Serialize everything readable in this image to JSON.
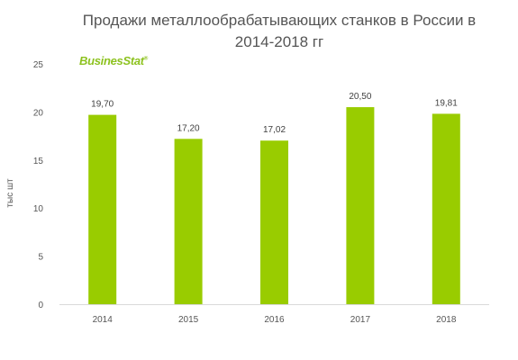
{
  "chart_data": {
    "type": "bar",
    "title_lines": [
      "Продажи металлообрабатывающих станков в России в",
      "2014-2018 гг"
    ],
    "logo_text": "BusinesStat",
    "logo_mark": "®",
    "xlabel": "",
    "ylabel": "тыс шт",
    "categories": [
      "2014",
      "2015",
      "2016",
      "2017",
      "2018"
    ],
    "values": [
      19.7,
      17.2,
      17.02,
      20.5,
      19.81
    ],
    "value_labels": [
      "19,70",
      "17,20",
      "17,02",
      "20,50",
      "19,81"
    ],
    "ylim": [
      0,
      25
    ],
    "yticks": [
      0,
      5,
      10,
      15,
      20,
      25
    ],
    "grid": false,
    "bar_color": "#99cc00",
    "axis_color": "#d9d9d9"
  }
}
